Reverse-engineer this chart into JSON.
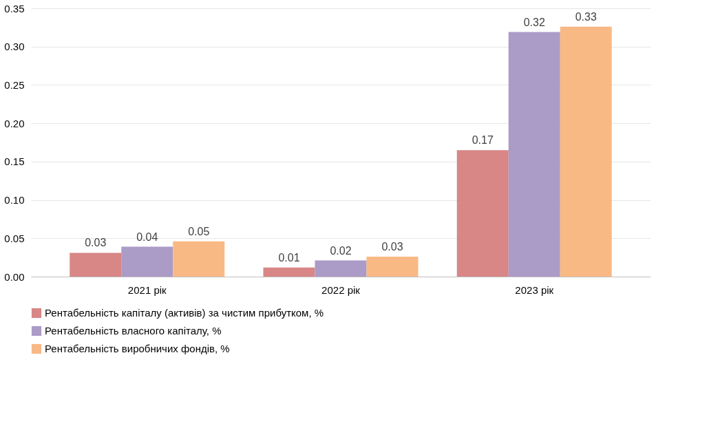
{
  "chart_data": {
    "type": "bar",
    "categories": [
      "2021 рік",
      "2022 рік",
      "2023 рік"
    ],
    "series": [
      {
        "name": "Рентабельність капіталу (активів) за чистим прибутком, %",
        "color": "#d67f7f",
        "values": [
          0.031,
          0.012,
          0.165
        ],
        "value_labels": [
          "0.03",
          "0.01",
          "0.17"
        ]
      },
      {
        "name": "Рентабельність власного капіталу, %",
        "color": "#a796c4",
        "values": [
          0.039,
          0.021,
          0.319
        ],
        "value_labels": [
          "0.04",
          "0.02",
          "0.32"
        ]
      },
      {
        "name": "Рентабельність виробничих фондів, %",
        "color": "#f8b57e",
        "values": [
          0.046,
          0.026,
          0.326
        ],
        "value_labels": [
          "0.05",
          "0.03",
          "0.33"
        ]
      }
    ],
    "ylim": [
      0,
      0.35
    ],
    "yticks": [
      {
        "value": 0,
        "label": "0.00"
      },
      {
        "value": 0.05,
        "label": "0.05"
      },
      {
        "value": 0.1,
        "label": "0.10"
      },
      {
        "value": 0.15,
        "label": "0.15"
      },
      {
        "value": 0.2,
        "label": "0.20"
      },
      {
        "value": 0.25,
        "label": "0.25"
      },
      {
        "value": 0.3,
        "label": "0.30"
      },
      {
        "value": 0.35,
        "label": "0.35"
      }
    ],
    "grid": "y",
    "legend": "bottom"
  }
}
